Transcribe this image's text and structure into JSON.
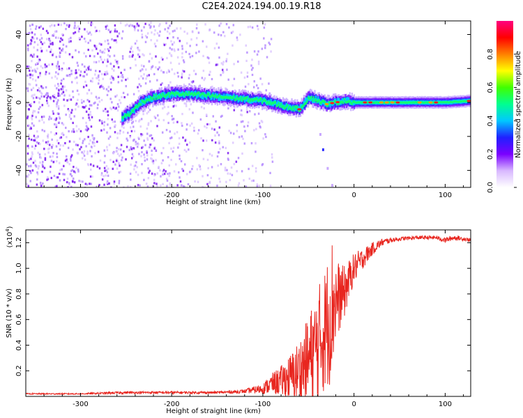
{
  "figure": {
    "title": "C2E4.2024.194.00.19.R18"
  },
  "chart_data": [
    {
      "type": "heatmap",
      "title": "",
      "xlabel": "Height of straight line (km)",
      "ylabel": "Frequency (Hz)",
      "xlim": [
        -360,
        128
      ],
      "ylim": [
        -50,
        48
      ],
      "xticks": [
        -300,
        -200,
        -100,
        0,
        100
      ],
      "yticks": [
        -40,
        -20,
        0,
        20,
        40
      ],
      "grid": false,
      "colorbar": {
        "label": "Normalized spectral amplitude",
        "range": [
          0,
          1
        ],
        "ticks": [
          0.0,
          0.2,
          0.4,
          0.6,
          0.8
        ],
        "colors": [
          "#ffffff",
          "#d8b8ff",
          "#7a00ff",
          "#2020ff",
          "#00c8ff",
          "#00ff90",
          "#40ff00",
          "#ffff00",
          "#ff8000",
          "#ff0000",
          "#ff0080"
        ]
      },
      "ridge": {
        "name": "",
        "x": [
          -255,
          -245,
          -235,
          -220,
          -200,
          -180,
          -160,
          -140,
          -120,
          -100,
          -80,
          -60,
          -50,
          -40,
          -30,
          -20,
          -10,
          0,
          20,
          50,
          80,
          100,
          128
        ],
        "y": [
          -9,
          -6,
          0,
          3,
          5,
          5,
          4,
          3,
          2,
          1,
          -2,
          -4,
          3,
          1,
          -1,
          0,
          1,
          0,
          0,
          0,
          0,
          0,
          1
        ]
      },
      "noise_region_xlim": [
        -360,
        -110
      ],
      "tail": {
        "x": [
          -38,
          -35,
          -30,
          -25
        ],
        "y": [
          -18,
          -27,
          -38,
          -48
        ]
      }
    },
    {
      "type": "line",
      "title": "",
      "xlabel": "Height of straight line (km)",
      "ylabel": "SNR (10 * v/v)",
      "y_multiplier": "(x10",
      "y_multiplier_exp": "4",
      "y_multiplier_close": ")",
      "xlim": [
        -360,
        128
      ],
      "ylim": [
        0,
        1.3
      ],
      "xticks": [
        -300,
        -200,
        -100,
        0,
        100
      ],
      "yticks": [
        0.2,
        0.4,
        0.6,
        0.8,
        1.0,
        1.2
      ],
      "grid": false,
      "series": [
        {
          "name": "",
          "color": "#e8261f",
          "x": [
            -360,
            -300,
            -250,
            -200,
            -150,
            -120,
            -100,
            -90,
            -80,
            -70,
            -60,
            -50,
            -40,
            -30,
            -25,
            -20,
            -15,
            -10,
            -5,
            0,
            10,
            20,
            30,
            40,
            50,
            70,
            90,
            100,
            110,
            120,
            128
          ],
          "y": [
            0.02,
            0.02,
            0.03,
            0.03,
            0.03,
            0.04,
            0.06,
            0.1,
            0.12,
            0.15,
            0.2,
            0.28,
            0.4,
            0.55,
            0.7,
            0.75,
            0.78,
            0.82,
            0.92,
            1.0,
            1.08,
            1.15,
            1.2,
            1.22,
            1.23,
            1.24,
            1.24,
            1.22,
            1.24,
            1.23,
            1.22
          ],
          "noise_amplitude": [
            0.005,
            0.005,
            0.01,
            0.01,
            0.01,
            0.015,
            0.04,
            0.08,
            0.12,
            0.18,
            0.25,
            0.35,
            0.45,
            0.5,
            0.6,
            0.35,
            0.25,
            0.2,
            0.15,
            0.12,
            0.08,
            0.05,
            0.03,
            0.02,
            0.015,
            0.015,
            0.015,
            0.02,
            0.02,
            0.015,
            0.015
          ]
        }
      ]
    }
  ]
}
